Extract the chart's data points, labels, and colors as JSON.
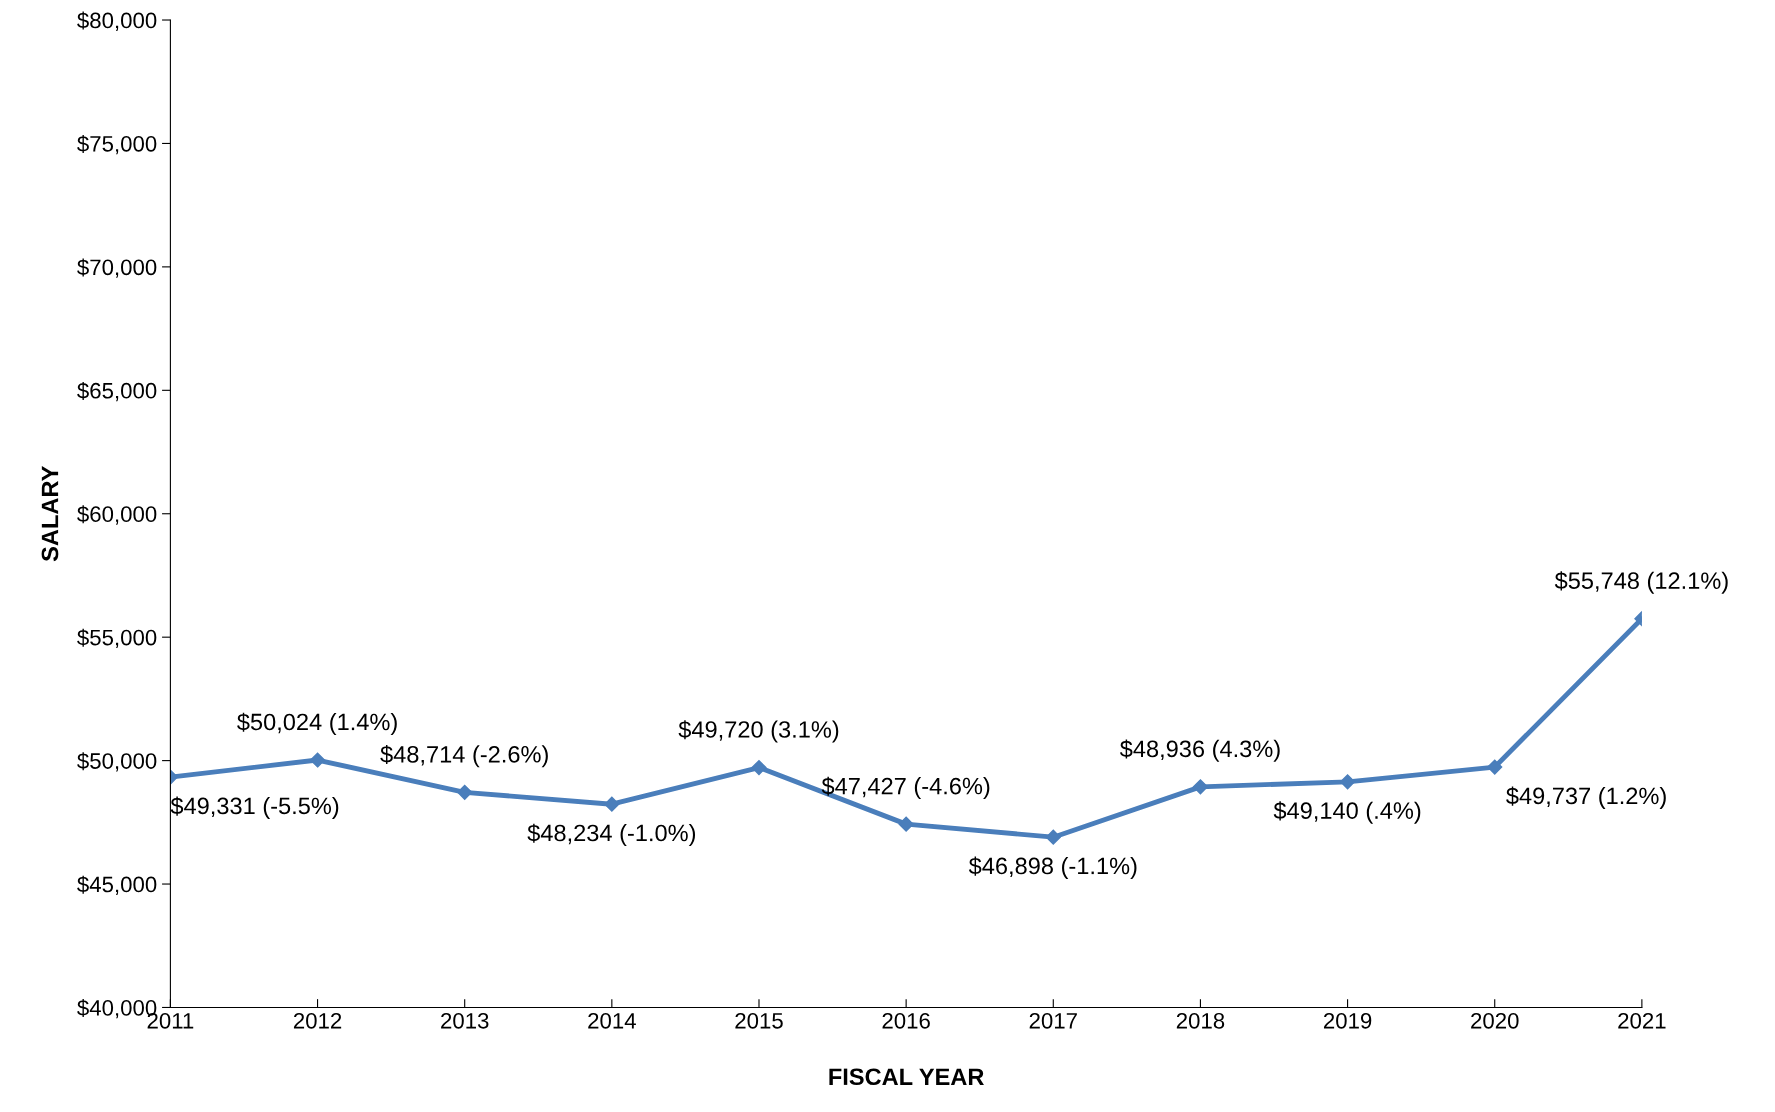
{
  "chart_data": {
    "type": "line",
    "xlabel": "FISCAL YEAR",
    "ylabel": "SALARY",
    "x": [
      2011,
      2012,
      2013,
      2014,
      2015,
      2016,
      2017,
      2018,
      2019,
      2020,
      2021
    ],
    "series": [
      {
        "color": "#4a7ebb",
        "values": [
          49331,
          50024,
          48714,
          48234,
          49720,
          47427,
          46898,
          48936,
          49140,
          49737,
          55748
        ],
        "value_labels": [
          "$49,331 (-5.5%)",
          "$50,024 (1.4%)",
          "$48,714 (-2.6%)",
          "$48,234 (-1.0%)",
          "$49,720 (3.1%)",
          "$47,427 (-4.6%)",
          "$46,898 (-1.1%)",
          "$48,936 (4.3%)",
          "$49,140 (.4%)",
          "$49,737 (1.2%)",
          "$55,748 (12.1%)"
        ]
      }
    ],
    "xlim": [
      2011,
      2021
    ],
    "xticks": [
      2011,
      2012,
      2013,
      2014,
      2015,
      2016,
      2017,
      2018,
      2019,
      2020,
      2021
    ],
    "ylim": [
      40000,
      80000
    ],
    "yticks": [
      {
        "value": 40000,
        "label": "$40,000"
      },
      {
        "value": 45000,
        "label": "$45,000"
      },
      {
        "value": 50000,
        "label": "$50,000"
      },
      {
        "value": 55000,
        "label": "$55,000"
      },
      {
        "value": 60000,
        "label": "$60,000"
      },
      {
        "value": 65000,
        "label": "$65,000"
      },
      {
        "value": 70000,
        "label": "$70,000"
      },
      {
        "value": 75000,
        "label": "$75,000"
      },
      {
        "value": 80000,
        "label": "$80,000"
      }
    ],
    "grid": false,
    "legend": false,
    "marker": "diamond",
    "line_style": "solid"
  }
}
